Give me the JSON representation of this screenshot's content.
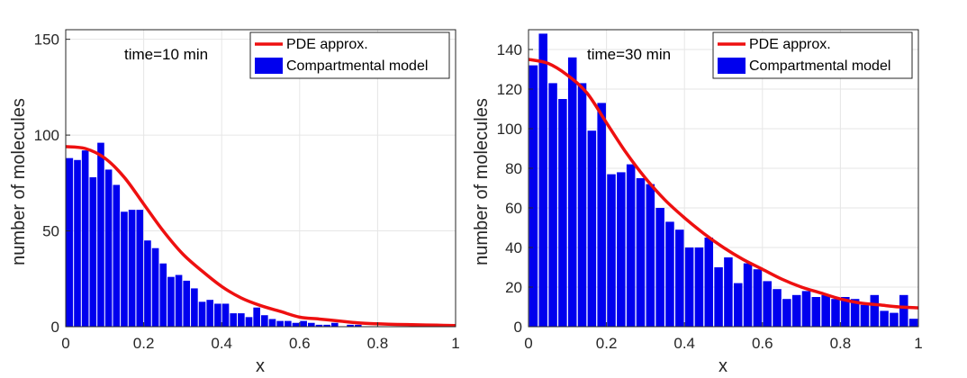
{
  "colors": {
    "bar": "#0000ee",
    "line": "#ee1010",
    "grid": "#e6e6e6",
    "axis": "#262626"
  },
  "chart_data": [
    {
      "type": "bar",
      "annotation": "time=10 min",
      "xlabel": "x",
      "ylabel": "number of molecules",
      "xlim": [
        0,
        1
      ],
      "ylim": [
        0,
        155
      ],
      "xticks": [
        0,
        0.2,
        0.4,
        0.6,
        0.8,
        1
      ],
      "xtick_labels": [
        "0",
        "0.2",
        "0.4",
        "0.6",
        "0.8",
        "1"
      ],
      "yticks": [
        0,
        50,
        100,
        150
      ],
      "ytick_labels": [
        "0",
        "50",
        "100",
        "150"
      ],
      "grid": true,
      "legend_position": "top-right",
      "bin_width": 0.02,
      "series": [
        {
          "name": "Compartmental model",
          "type": "bar",
          "x": [
            0.01,
            0.03,
            0.05,
            0.07,
            0.09,
            0.11,
            0.13,
            0.15,
            0.17,
            0.19,
            0.21,
            0.23,
            0.25,
            0.27,
            0.29,
            0.31,
            0.33,
            0.35,
            0.37,
            0.39,
            0.41,
            0.43,
            0.45,
            0.47,
            0.49,
            0.51,
            0.53,
            0.55,
            0.57,
            0.59,
            0.61,
            0.63,
            0.65,
            0.67,
            0.69,
            0.71,
            0.73,
            0.75,
            0.77,
            0.79,
            0.81,
            0.83,
            0.85,
            0.87,
            0.89,
            0.91,
            0.93,
            0.95,
            0.97,
            0.99
          ],
          "values": [
            88,
            87,
            92,
            78,
            96,
            82,
            74,
            60,
            61,
            61,
            45,
            41,
            33,
            26,
            27,
            24,
            20,
            13,
            14,
            12,
            12,
            7,
            7,
            5,
            10,
            6,
            4,
            3,
            3,
            2,
            3,
            2,
            1,
            1,
            2,
            0,
            1,
            1,
            0,
            0,
            0,
            0,
            0,
            0,
            0,
            0,
            0,
            0,
            0,
            0
          ]
        },
        {
          "name": "PDE approx.",
          "type": "line",
          "x": [
            0,
            0.05,
            0.1,
            0.15,
            0.2,
            0.25,
            0.3,
            0.35,
            0.4,
            0.45,
            0.5,
            0.55,
            0.6,
            0.65,
            0.7,
            0.75,
            0.8,
            0.85,
            0.9,
            0.95,
            1.0
          ],
          "values": [
            94,
            93,
            88,
            78,
            64,
            50,
            38,
            29,
            21,
            15,
            11,
            8,
            5,
            4,
            3,
            2,
            1.5,
            1.2,
            1,
            0.8,
            0.6
          ]
        }
      ]
    },
    {
      "type": "bar",
      "annotation": "time=30 min",
      "xlabel": "x",
      "ylabel": "number of molecules",
      "xlim": [
        0,
        1
      ],
      "ylim": [
        0,
        150
      ],
      "xticks": [
        0,
        0.2,
        0.4,
        0.6,
        0.8,
        1
      ],
      "xtick_labels": [
        "0",
        "0.2",
        "0.4",
        "0.6",
        "0.8",
        "1"
      ],
      "yticks": [
        0,
        20,
        40,
        60,
        80,
        100,
        120,
        140
      ],
      "ytick_labels": [
        "0",
        "20",
        "40",
        "60",
        "80",
        "100",
        "120",
        "140"
      ],
      "grid": true,
      "legend_position": "top-right",
      "bin_width": 0.025,
      "series": [
        {
          "name": "Compartmental model",
          "type": "bar",
          "x": [
            0.0125,
            0.0375,
            0.0625,
            0.0875,
            0.1125,
            0.1375,
            0.1625,
            0.1875,
            0.2125,
            0.2375,
            0.2625,
            0.2875,
            0.3125,
            0.3375,
            0.3625,
            0.3875,
            0.4125,
            0.4375,
            0.4625,
            0.4875,
            0.5125,
            0.5375,
            0.5625,
            0.5875,
            0.6125,
            0.6375,
            0.6625,
            0.6875,
            0.7125,
            0.7375,
            0.7625,
            0.7875,
            0.8125,
            0.8375,
            0.8625,
            0.8875,
            0.9125,
            0.9375,
            0.9625,
            0.9875
          ],
          "values": [
            132,
            148,
            123,
            115,
            136,
            123,
            99,
            113,
            77,
            78,
            82,
            75,
            72,
            60,
            53,
            49,
            40,
            40,
            45,
            30,
            35,
            22,
            32,
            29,
            23,
            19,
            14,
            16,
            18,
            15,
            16,
            14,
            15,
            14,
            11,
            16,
            8,
            7,
            16,
            4
          ]
        },
        {
          "name": "PDE approx.",
          "type": "line",
          "x": [
            0,
            0.05,
            0.1,
            0.15,
            0.2,
            0.25,
            0.3,
            0.35,
            0.4,
            0.45,
            0.5,
            0.55,
            0.6,
            0.65,
            0.7,
            0.75,
            0.8,
            0.85,
            0.9,
            0.95,
            1.0
          ],
          "values": [
            135,
            133,
            127,
            118,
            103,
            88,
            75,
            64,
            55,
            47,
            40,
            34,
            29,
            24,
            20,
            17,
            14,
            12,
            11,
            10,
            9.5
          ]
        }
      ]
    }
  ]
}
